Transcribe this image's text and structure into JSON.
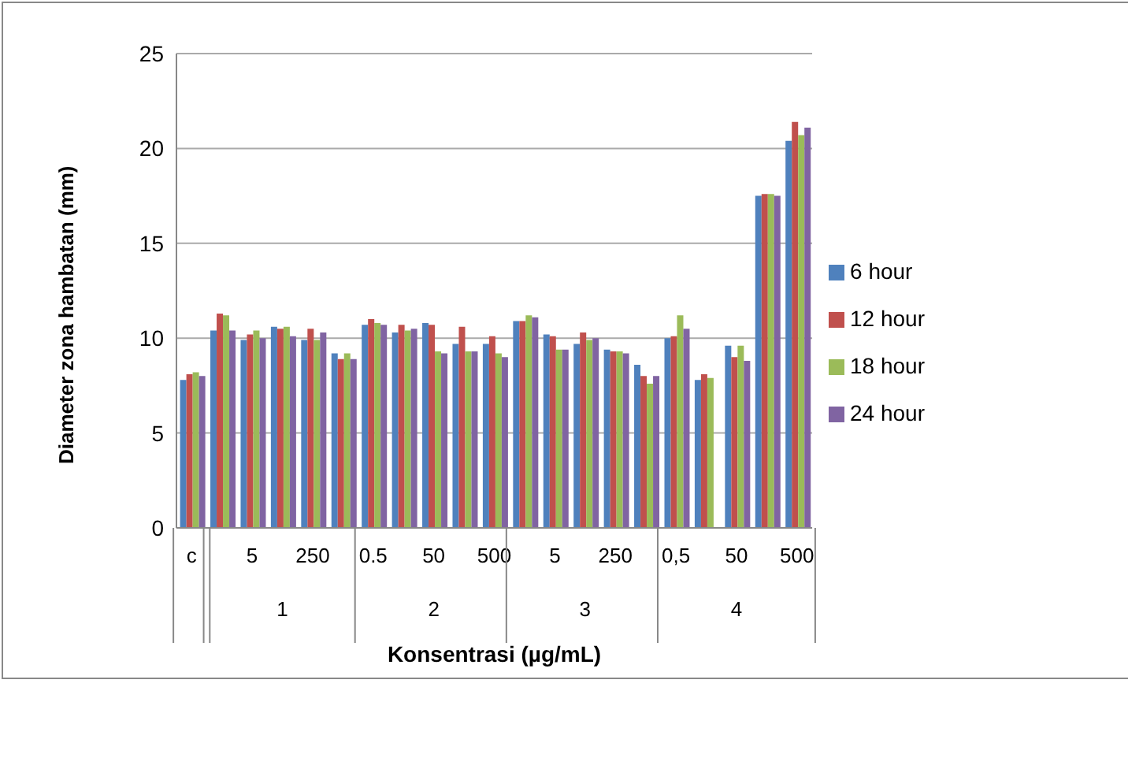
{
  "chart_data": {
    "type": "bar",
    "xlabel": "Konsentrasi  (µg/mL)",
    "ylabel": "Diameter zona hambatan (mm)",
    "categories": [
      "c",
      null,
      "5",
      null,
      "250",
      null,
      "0.5",
      null,
      "50",
      null,
      "500",
      null,
      "5",
      null,
      "250",
      null,
      "0,5",
      null,
      "50",
      null,
      "500"
    ],
    "annotations": [
      "1",
      "2",
      "3",
      "4"
    ],
    "series": [
      {
        "name": "6 hour",
        "color": "#4f81bd",
        "values": [
          7.8,
          10.4,
          9.9,
          10.6,
          9.9,
          9.2,
          10.7,
          10.3,
          10.8,
          9.7,
          9.7,
          10.9,
          10.2,
          9.7,
          9.4,
          8.6,
          10.0,
          7.8,
          9.6,
          17.5,
          20.4
        ]
      },
      {
        "name": "12 hour",
        "color": "#c0504d",
        "values": [
          8.1,
          11.3,
          10.2,
          10.5,
          10.5,
          8.9,
          11.0,
          10.7,
          10.7,
          10.6,
          10.1,
          10.9,
          10.1,
          10.3,
          9.3,
          8.0,
          10.1,
          8.1,
          9.0,
          17.6,
          21.4
        ]
      },
      {
        "name": "18 hour",
        "color": "#9bbb59",
        "values": [
          8.2,
          11.2,
          10.4,
          10.6,
          9.9,
          9.2,
          10.8,
          10.4,
          9.3,
          9.3,
          9.2,
          11.2,
          9.4,
          9.9,
          9.3,
          7.6,
          11.2,
          7.9,
          9.6,
          17.6,
          20.7
        ]
      },
      {
        "name": "24 hour",
        "color": "#8064a2",
        "values": [
          8.0,
          10.4,
          10.0,
          10.1,
          10.3,
          8.9,
          10.7,
          10.5,
          9.2,
          9.3,
          9.0,
          11.1,
          9.4,
          10.0,
          9.2,
          8.0,
          10.5,
          null,
          8.8,
          17.5,
          21.1
        ]
      }
    ],
    "ylim": [
      0,
      25
    ],
    "yticks": [
      0,
      5,
      10,
      15,
      20,
      25
    ],
    "grid": "y",
    "legend": "right"
  }
}
